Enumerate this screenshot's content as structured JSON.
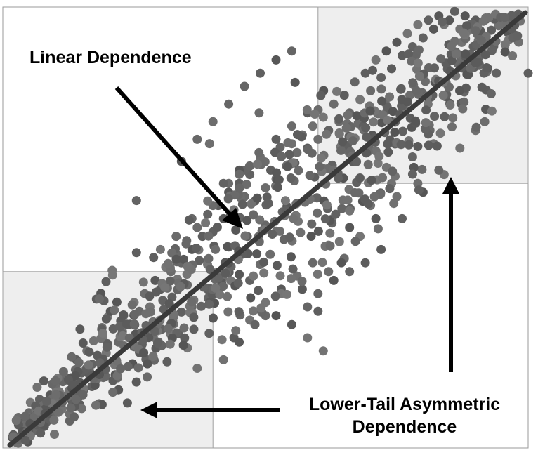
{
  "chart_data": {
    "type": "scatter",
    "title": "",
    "xlabel": "",
    "ylabel": "",
    "xlim": [
      0,
      1
    ],
    "ylim": [
      0,
      1
    ],
    "grid": false,
    "regions": [
      {
        "name": "lower-tail",
        "x": [
          0,
          0.4
        ],
        "y": [
          0,
          0.4
        ]
      },
      {
        "name": "upper-tail",
        "x": [
          0.6,
          1
        ],
        "y": [
          0.6,
          1
        ]
      }
    ],
    "fit_line": {
      "x": [
        0,
        1
      ],
      "y": [
        0,
        1
      ]
    },
    "annotations": [
      {
        "text": "Linear Dependence"
      },
      {
        "text": "Lower-Tail Asymmetric",
        "text2": "Dependence"
      }
    ],
    "series": [
      {
        "point_count": 900,
        "x": [
          0.02,
          0.04,
          0.05,
          0.06,
          0.07,
          0.08,
          0.09,
          0.1,
          0.11,
          0.12,
          0.13,
          0.14,
          0.15,
          0.16,
          0.17,
          0.18,
          0.19,
          0.2,
          0.21,
          0.22,
          0.23,
          0.24,
          0.25,
          0.26,
          0.27,
          0.28,
          0.29,
          0.3,
          0.31,
          0.32,
          0.33,
          0.34,
          0.35,
          0.36,
          0.37,
          0.38,
          0.39,
          0.4,
          0.41,
          0.42,
          0.43,
          0.44,
          0.45,
          0.46,
          0.47,
          0.48,
          0.49,
          0.5,
          0.51,
          0.52,
          0.53,
          0.54,
          0.55,
          0.56,
          0.57,
          0.58,
          0.59,
          0.6,
          0.61,
          0.62,
          0.63,
          0.64,
          0.65,
          0.66,
          0.67,
          0.68,
          0.69,
          0.7,
          0.71,
          0.72,
          0.73,
          0.74,
          0.75,
          0.76,
          0.77,
          0.78,
          0.79,
          0.8,
          0.81,
          0.82,
          0.83,
          0.84,
          0.85,
          0.86,
          0.87,
          0.88,
          0.89,
          0.9,
          0.91,
          1.0,
          0.78,
          0.82,
          0.84,
          0.66,
          0.7,
          0.74,
          0.72,
          0.76,
          0.8,
          0.52,
          0.55,
          0.58,
          0.6,
          0.63,
          0.66,
          0.69,
          0.44,
          0.47,
          0.5,
          0.53,
          0.56,
          0.59,
          0.62,
          0.4,
          0.43,
          0.46,
          0.49,
          0.52,
          0.55,
          0.58,
          0.3,
          0.33,
          0.36,
          0.39,
          0.42,
          0.45,
          0.34,
          0.37,
          0.4,
          0.43,
          0.46,
          0.49,
          0.52,
          0.55,
          0.7,
          0.74,
          0.57,
          0.6,
          0.48,
          0.45,
          0.42,
          0.5,
          0.53,
          0.62,
          0.65,
          0.36,
          0.39,
          0.47,
          0.58,
          0.61,
          0.68,
          0.71,
          0.75,
          0.79,
          0.83,
          0.87,
          0.9
        ],
        "y": [
          0.03,
          0.05,
          0.08,
          0.06,
          0.11,
          0.09,
          0.12,
          0.14,
          0.1,
          0.16,
          0.15,
          0.2,
          0.17,
          0.22,
          0.19,
          0.21,
          0.25,
          0.23,
          0.27,
          0.24,
          0.3,
          0.28,
          0.33,
          0.31,
          0.35,
          0.32,
          0.38,
          0.36,
          0.41,
          0.4,
          0.44,
          0.42,
          0.47,
          0.45,
          0.5,
          0.48,
          0.53,
          0.49,
          0.55,
          0.52,
          0.58,
          0.54,
          0.6,
          0.57,
          0.62,
          0.56,
          0.65,
          0.59,
          0.63,
          0.61,
          0.66,
          0.64,
          0.69,
          0.67,
          0.71,
          0.68,
          0.73,
          0.7,
          0.75,
          0.72,
          0.78,
          0.74,
          0.8,
          0.76,
          0.83,
          0.79,
          0.85,
          0.81,
          0.88,
          0.84,
          0.9,
          0.86,
          0.92,
          0.89,
          0.94,
          0.91,
          0.96,
          0.93,
          0.97,
          0.95,
          0.98,
          0.96,
          0.97,
          0.99,
          0.95,
          0.98,
          0.96,
          0.97,
          0.94,
          0.85,
          0.66,
          0.69,
          0.62,
          0.5,
          0.55,
          0.6,
          0.45,
          0.52,
          0.58,
          0.3,
          0.28,
          0.32,
          0.35,
          0.38,
          0.4,
          0.42,
          0.25,
          0.29,
          0.33,
          0.36,
          0.39,
          0.42,
          0.46,
          0.55,
          0.6,
          0.63,
          0.66,
          0.7,
          0.73,
          0.76,
          0.45,
          0.48,
          0.52,
          0.56,
          0.6,
          0.63,
          0.65,
          0.7,
          0.74,
          0.78,
          0.82,
          0.85,
          0.88,
          0.9,
          0.7,
          0.74,
          0.36,
          0.31,
          0.28,
          0.24,
          0.2,
          0.3,
          0.35,
          0.4,
          0.43,
          0.32,
          0.36,
          0.38,
          0.25,
          0.22,
          0.48,
          0.52,
          0.57,
          0.6,
          0.63,
          0.68,
          0.72
        ]
      }
    ]
  }
}
